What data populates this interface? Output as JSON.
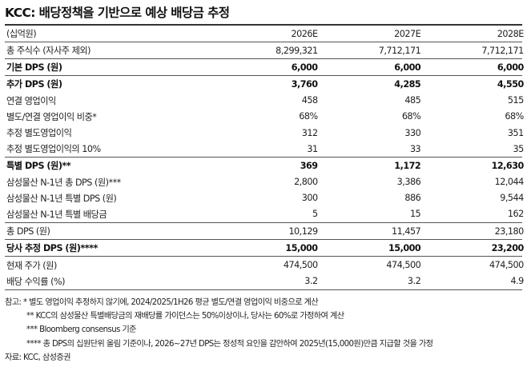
{
  "title": "KCC: 배당정책을 기반으로 예상 배당금 추정",
  "table": {
    "header": [
      "(십억원)",
      "2026E",
      "2027E",
      "2028E"
    ],
    "rows": [
      {
        "label": "총 주식수 (자사주 제외)",
        "values": [
          "8,299,321",
          "7,712,171",
          "7,712,171"
        ]
      },
      {
        "label": "기본 DPS (원)",
        "values": [
          "6,000",
          "6,000",
          "6,000"
        ]
      },
      {
        "label": "추가 DPS (원)",
        "values": [
          "3,760",
          "4,285",
          "4,550"
        ]
      },
      {
        "label": "연결 영업이익",
        "values": [
          "458",
          "485",
          "515"
        ]
      },
      {
        "label": "별도/연결 영업이익 비중*",
        "values": [
          "68%",
          "68%",
          "68%"
        ]
      },
      {
        "label": "추정 별도영업이익",
        "values": [
          "312",
          "330",
          "351"
        ]
      },
      {
        "label": "추정 별도영업이익의 10%",
        "values": [
          "31",
          "33",
          "35"
        ]
      },
      {
        "label": "특별 DPS (원)**",
        "values": [
          "369",
          "1,172",
          "12,630"
        ]
      },
      {
        "label": "삼성물산 N-1년 총 DPS (원)***",
        "values": [
          "2,800",
          "3,386",
          "12,044"
        ]
      },
      {
        "label": "삼성물산 N-1년 특별 DPS (원)",
        "values": [
          "300",
          "886",
          "9,544"
        ]
      },
      {
        "label": "삼성물산 N-1년 특별 배당금",
        "values": [
          "5",
          "15",
          "162"
        ]
      },
      {
        "label": "총 DPS (원)",
        "values": [
          "10,129",
          "11,457",
          "23,180"
        ]
      },
      {
        "label": "당사 추정 DPS (원)****",
        "values": [
          "15,000",
          "15,000",
          "23,200"
        ]
      },
      {
        "label": "현재 주가 (원)",
        "values": [
          "474,500",
          "474,500",
          "474,500"
        ]
      },
      {
        "label": "배당 수익률 (%)",
        "values": [
          "3.2",
          "3.2",
          "4.9"
        ]
      }
    ]
  },
  "notes": [
    "참고: * 별도 영업이익 추정하지 않기에, 2024/2025/1H26 평균 별도/연결 영업이익 비중으로 계산",
    "** KCC의 삼성물산 특별배당금의 재배당률 가이던스는 50%이상이나, 당사는 60%로 가정하여 계산",
    "*** Bloomberg consensus 기준",
    "**** 총 DPS의 십원단위 올림 기준이나, 2026~27년 DPS는 정성적 요인을 감안하여 2025년(15,000원)만큼 지급할 것을 가정",
    "자료: KCC, 삼성증권"
  ]
}
